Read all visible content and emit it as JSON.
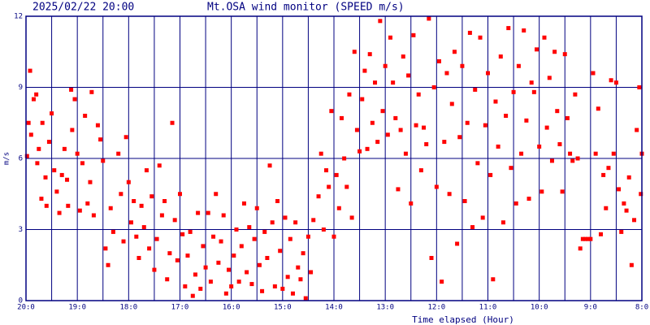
{
  "chart_data": {
    "type": "scatter",
    "timestamp": "2025/02/22 20:00",
    "title": "Mt.OSA wind monitor (SPEED m/s)",
    "y_label": "m/s",
    "x_label": "Time elapsed (Hour)",
    "color": "#ff0000",
    "grid": true,
    "xlim": [
      20,
      8
    ],
    "ylim": [
      0,
      12
    ],
    "yticks": [
      0,
      3,
      6,
      9,
      12
    ],
    "xticks": [
      {
        "value": 20,
        "label": "20:0"
      },
      {
        "value": 19,
        "label": "19:0"
      },
      {
        "value": 18,
        "label": "18:0"
      },
      {
        "value": 17,
        "label": "17:0"
      },
      {
        "value": 16,
        "label": "16:0"
      },
      {
        "value": 15,
        "label": "15:0"
      },
      {
        "value": 14,
        "label": "14:0"
      },
      {
        "value": 13,
        "label": "13:0"
      },
      {
        "value": 12,
        "label": "12:0"
      },
      {
        "value": 11,
        "label": "11:0"
      },
      {
        "value": 10,
        "label": "10:0"
      },
      {
        "value": 9,
        "label": "9:0"
      },
      {
        "value": 8,
        "label": "8:0"
      }
    ],
    "xminorticks": [
      19.5,
      18.5,
      17.5,
      16.5,
      15.5,
      14.5,
      13.5,
      12.5,
      11.5,
      10.5,
      9.5,
      8.5
    ],
    "x": [
      19.98,
      19.95,
      19.92,
      19.9,
      19.85,
      19.8,
      19.78,
      19.75,
      19.7,
      19.68,
      19.62,
      19.6,
      19.55,
      19.5,
      19.45,
      19.4,
      19.35,
      19.3,
      19.25,
      19.2,
      19.18,
      19.12,
      19.1,
      19.05,
      19.0,
      18.95,
      18.9,
      18.85,
      18.8,
      18.75,
      18.72,
      18.68,
      18.6,
      18.55,
      18.5,
      18.45,
      18.4,
      18.35,
      18.3,
      18.2,
      18.15,
      18.1,
      18.05,
      18.0,
      17.95,
      17.9,
      17.85,
      17.8,
      17.75,
      17.7,
      17.65,
      17.6,
      17.55,
      17.5,
      17.45,
      17.4,
      17.35,
      17.3,
      17.25,
      17.2,
      17.15,
      17.1,
      17.05,
      17.0,
      16.95,
      16.9,
      16.85,
      16.8,
      16.75,
      16.7,
      16.65,
      16.6,
      16.55,
      16.5,
      16.45,
      16.4,
      16.35,
      16.3,
      16.25,
      16.2,
      16.15,
      16.1,
      16.05,
      16.0,
      15.95,
      15.9,
      15.85,
      15.8,
      15.75,
      15.7,
      15.65,
      15.6,
      15.55,
      15.5,
      15.45,
      15.4,
      15.35,
      15.3,
      15.25,
      15.2,
      15.15,
      15.1,
      15.05,
      15.0,
      14.95,
      14.9,
      14.85,
      14.8,
      14.75,
      14.7,
      14.65,
      14.6,
      14.55,
      14.5,
      14.45,
      14.4,
      14.3,
      14.25,
      14.2,
      14.15,
      14.1,
      14.05,
      14.0,
      13.95,
      13.9,
      13.85,
      13.8,
      13.75,
      13.7,
      13.65,
      13.6,
      13.55,
      13.5,
      13.45,
      13.4,
      13.35,
      13.3,
      13.25,
      13.2,
      13.15,
      13.1,
      13.05,
      13.0,
      12.95,
      12.9,
      12.85,
      12.8,
      12.75,
      12.7,
      12.65,
      12.6,
      12.55,
      12.5,
      12.45,
      12.4,
      12.35,
      12.3,
      12.25,
      12.2,
      12.15,
      12.1,
      12.05,
      12.0,
      11.95,
      11.9,
      11.85,
      11.8,
      11.75,
      11.7,
      11.65,
      11.6,
      11.55,
      11.5,
      11.45,
      11.4,
      11.35,
      11.3,
      11.25,
      11.2,
      11.15,
      11.1,
      11.05,
      11.0,
      10.95,
      10.9,
      10.85,
      10.8,
      10.75,
      10.7,
      10.65,
      10.6,
      10.55,
      10.5,
      10.45,
      10.4,
      10.35,
      10.3,
      10.25,
      10.2,
      10.15,
      10.1,
      10.05,
      10.0,
      9.95,
      9.9,
      9.85,
      9.8,
      9.75,
      9.7,
      9.65,
      9.6,
      9.55,
      9.5,
      9.45,
      9.4,
      9.35,
      9.3,
      9.25,
      9.2,
      9.15,
      9.1,
      9.05,
      9.0,
      8.95,
      8.9,
      8.85,
      8.8,
      8.75,
      8.7,
      8.65,
      8.6,
      8.55,
      8.5,
      8.45,
      8.4,
      8.35,
      8.3,
      8.25,
      8.2,
      8.15,
      8.1,
      8.05,
      8.02,
      8.0
    ],
    "values": [
      6.1,
      7.5,
      9.7,
      7.0,
      8.5,
      8.7,
      5.8,
      6.4,
      4.3,
      7.5,
      5.2,
      4.0,
      6.7,
      7.9,
      5.5,
      4.6,
      3.7,
      5.3,
      6.4,
      5.1,
      4.0,
      8.9,
      7.2,
      8.5,
      6.2,
      3.8,
      5.8,
      7.8,
      4.1,
      5.0,
      8.8,
      3.6,
      7.4,
      6.8,
      5.9,
      2.2,
      1.5,
      3.9,
      2.9,
      6.2,
      4.5,
      2.5,
      6.9,
      5.0,
      3.3,
      4.2,
      2.7,
      1.8,
      4.0,
      3.1,
      5.5,
      2.2,
      4.4,
      1.3,
      2.6,
      5.7,
      3.6,
      4.2,
      0.9,
      2.0,
      7.5,
      3.4,
      1.7,
      4.5,
      2.8,
      0.6,
      1.9,
      2.9,
      0.2,
      1.1,
      3.7,
      0.5,
      2.3,
      1.4,
      3.7,
      0.8,
      2.7,
      4.5,
      1.6,
      2.5,
      3.6,
      0.3,
      1.3,
      0.6,
      1.9,
      3.0,
      0.8,
      2.3,
      4.1,
      1.2,
      3.1,
      0.7,
      2.6,
      3.9,
      1.5,
      0.4,
      2.9,
      1.8,
      5.7,
      3.3,
      0.6,
      4.2,
      2.1,
      0.5,
      3.5,
      1.0,
      2.6,
      0.3,
      3.3,
      1.4,
      0.9,
      2.0,
      0.1,
      2.7,
      1.2,
      3.4,
      4.4,
      6.2,
      3.0,
      5.5,
      4.8,
      8.0,
      2.7,
      5.3,
      3.9,
      7.7,
      6.0,
      4.8,
      8.7,
      3.5,
      10.5,
      7.2,
      6.3,
      8.5,
      9.7,
      6.4,
      10.4,
      7.5,
      9.2,
      6.7,
      11.8,
      8.0,
      9.9,
      7.0,
      11.1,
      9.2,
      7.7,
      4.7,
      7.2,
      10.3,
      6.2,
      9.5,
      4.1,
      11.2,
      7.4,
      8.7,
      5.5,
      7.3,
      6.6,
      11.9,
      1.8,
      9.0,
      4.8,
      10.1,
      0.8,
      6.7,
      9.6,
      4.5,
      8.3,
      10.5,
      2.4,
      6.9,
      9.9,
      4.2,
      7.5,
      11.3,
      3.1,
      8.9,
      5.8,
      11.1,
      3.5,
      7.4,
      9.6,
      5.3,
      0.9,
      8.4,
      6.5,
      10.3,
      3.3,
      7.8,
      11.5,
      5.6,
      8.8,
      4.1,
      9.9,
      6.2,
      11.4,
      7.6,
      4.3,
      9.2,
      8.8,
      10.6,
      6.5,
      4.6,
      11.1,
      7.3,
      9.4,
      5.9,
      10.5,
      8.0,
      6.6,
      4.6,
      10.4,
      7.7,
      6.2,
      5.9,
      8.7,
      6.0,
      2.2,
      2.6,
      2.6,
      2.6,
      2.6,
      9.6,
      6.2,
      8.1,
      2.8,
      5.3,
      3.9,
      5.6,
      9.3,
      6.2,
      9.2,
      4.7,
      2.9,
      4.1,
      3.8,
      5.2,
      1.5,
      3.4,
      7.2,
      9.0,
      4.5,
      6.2
    ]
  }
}
